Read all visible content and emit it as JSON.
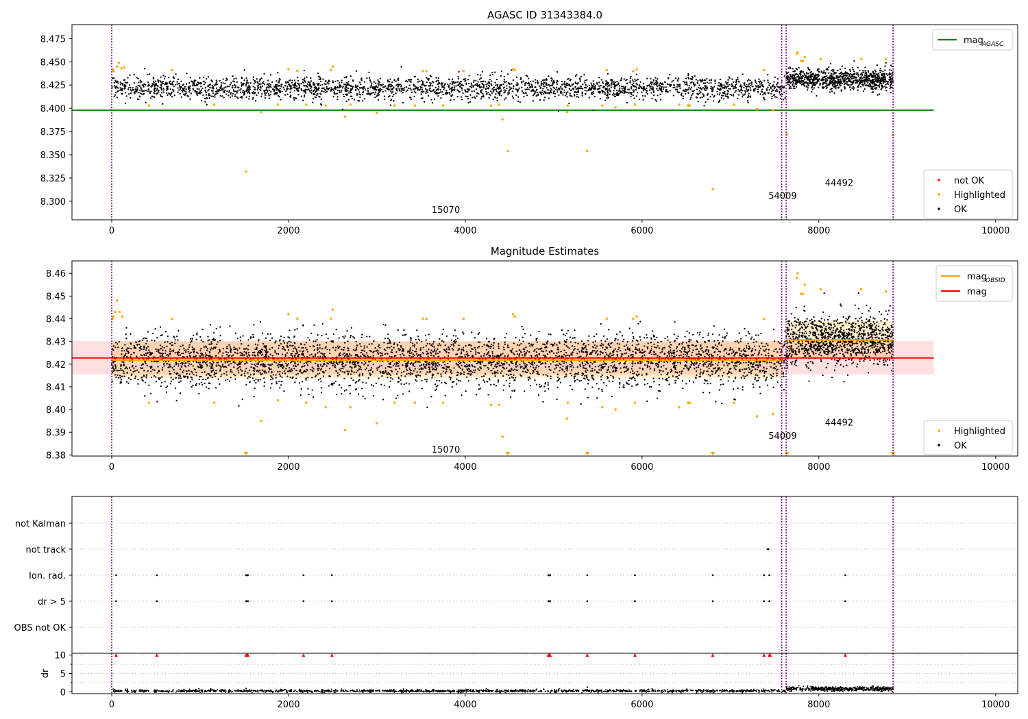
{
  "figure": {
    "title_top": "AGASC ID 31343384.0",
    "title_mid": "Magnitude Estimates"
  },
  "chart_data": [
    {
      "type": "scatter",
      "title": "AGASC ID 31343384.0",
      "xlim": [
        -450,
        10250
      ],
      "ylim": [
        8.28,
        8.49
      ],
      "xticks": [
        0,
        2000,
        4000,
        6000,
        8000,
        10000
      ],
      "yticks": [
        8.3,
        8.325,
        8.35,
        8.375,
        8.4,
        8.425,
        8.45,
        8.475
      ],
      "ytick_labels": [
        "8.300",
        "8.325",
        "8.350",
        "8.375",
        "8.400",
        "8.425",
        "8.450",
        "8.475"
      ],
      "grid": false,
      "legend_upper": {
        "placement": "upper-right",
        "entries": [
          {
            "label": "mag",
            "sub": "AGASC",
            "color": "#008000",
            "kind": "line"
          }
        ]
      },
      "legend_lower": {
        "placement": "lower-right",
        "entries": [
          {
            "label": "not OK",
            "color": "#ff0000",
            "kind": "dot"
          },
          {
            "label": "Highlighted",
            "color": "#ffa500",
            "kind": "dot"
          },
          {
            "label": "OK",
            "color": "#000000",
            "kind": "dot"
          }
        ]
      },
      "mag_agasc": {
        "value": 8.398,
        "x_range": [
          -450,
          9300
        ],
        "color": "#008000"
      },
      "obs_lines": [
        0,
        7580,
        7630,
        8840
      ],
      "obs_labels": [
        {
          "text": "15070",
          "x": 3780,
          "y": 8.291
        },
        {
          "text": "54009",
          "x": 7590,
          "y": 8.306
        },
        {
          "text": "44492",
          "x": 8230,
          "y": 8.32
        }
      ],
      "ok_groups": [
        {
          "x_range": [
            0,
            7620
          ],
          "center": 8.422,
          "spread": 0.006,
          "n": 2600
        },
        {
          "x_range": [
            7630,
            8840
          ],
          "center": 8.431,
          "spread": 0.0055,
          "n": 900
        }
      ],
      "highlighted_points": [
        [
          10,
          8.442
        ],
        [
          20,
          8.44
        ],
        [
          60,
          8.445
        ],
        [
          80,
          8.449
        ],
        [
          110,
          8.443
        ],
        [
          140,
          8.444
        ],
        [
          420,
          8.403
        ],
        [
          680,
          8.441
        ],
        [
          1160,
          8.404
        ],
        [
          1520,
          8.332
        ],
        [
          1690,
          8.396
        ],
        [
          1880,
          8.404
        ],
        [
          2000,
          8.442
        ],
        [
          2100,
          8.44
        ],
        [
          2200,
          8.404
        ],
        [
          2420,
          8.403
        ],
        [
          2480,
          8.441
        ],
        [
          2500,
          8.445
        ],
        [
          2640,
          8.391
        ],
        [
          2700,
          8.404
        ],
        [
          3000,
          8.395
        ],
        [
          3200,
          8.403
        ],
        [
          3430,
          8.403
        ],
        [
          3520,
          8.44
        ],
        [
          3560,
          8.44
        ],
        [
          3750,
          8.403
        ],
        [
          3980,
          8.44
        ],
        [
          4290,
          8.403
        ],
        [
          4380,
          8.404
        ],
        [
          4420,
          8.388
        ],
        [
          4480,
          8.354
        ],
        [
          4540,
          8.442
        ],
        [
          4560,
          8.441
        ],
        [
          5150,
          8.396
        ],
        [
          5160,
          8.403
        ],
        [
          5380,
          8.354
        ],
        [
          5550,
          8.403
        ],
        [
          5600,
          8.441
        ],
        [
          5700,
          8.401
        ],
        [
          5900,
          8.44
        ],
        [
          5940,
          8.442
        ],
        [
          5920,
          8.404
        ],
        [
          6420,
          8.404
        ],
        [
          6520,
          8.403
        ],
        [
          6540,
          8.403
        ],
        [
          6800,
          8.313
        ],
        [
          7040,
          8.404
        ],
        [
          7300,
          8.399
        ],
        [
          7380,
          8.441
        ],
        [
          7480,
          8.398
        ],
        [
          7640,
          8.372
        ],
        [
          7750,
          8.459
        ],
        [
          7760,
          8.46
        ],
        [
          7800,
          8.451
        ],
        [
          7820,
          8.451
        ],
        [
          7840,
          8.455
        ],
        [
          8020,
          8.453
        ],
        [
          8480,
          8.453
        ],
        [
          8760,
          8.453
        ],
        [
          8840,
          8.371
        ]
      ]
    },
    {
      "type": "scatter",
      "title": "Magnitude Estimates",
      "xlim": [
        -450,
        10250
      ],
      "ylim": [
        8.3795,
        8.4655
      ],
      "xticks": [
        0,
        2000,
        4000,
        6000,
        8000,
        10000
      ],
      "yticks": [
        8.38,
        8.39,
        8.4,
        8.41,
        8.42,
        8.43,
        8.44,
        8.45,
        8.46
      ],
      "ytick_labels": [
        "8.38",
        "8.39",
        "8.40",
        "8.41",
        "8.42",
        "8.43",
        "8.44",
        "8.45",
        "8.46"
      ],
      "grid": false,
      "legend_upper": {
        "placement": "upper-right",
        "entries": [
          {
            "label": "mag",
            "sub": "OBSID",
            "color": "#ffa500",
            "kind": "line"
          },
          {
            "label": "mag",
            "sub": "",
            "color": "#ff0000",
            "kind": "line"
          }
        ]
      },
      "legend_lower": {
        "placement": "lower-right",
        "entries": [
          {
            "label": "Highlighted",
            "color": "#ffa500",
            "kind": "dot"
          },
          {
            "label": "OK",
            "color": "#000000",
            "kind": "dot"
          }
        ]
      },
      "mag_line": {
        "value": 8.4227,
        "x_range": [
          -450,
          9300
        ],
        "color": "#ff0000"
      },
      "mag_band": {
        "low": 8.4155,
        "high": 8.4302,
        "x_range": [
          -450,
          9300
        ],
        "color": "#ff0000"
      },
      "obsid_segments": [
        {
          "x_range": [
            0,
            7600
          ],
          "value": 8.4218,
          "band": [
            8.414,
            8.43
          ]
        },
        {
          "x_range": [
            7640,
            8840
          ],
          "value": 8.4306,
          "band": [
            8.422,
            8.439
          ]
        }
      ],
      "obs_lines": [
        0,
        7580,
        7630,
        8840
      ],
      "obs_labels": [
        {
          "text": "15070",
          "x": 3780,
          "y": 8.3825
        },
        {
          "text": "54009",
          "x": 7590,
          "y": 8.3885
        },
        {
          "text": "44492",
          "x": 8230,
          "y": 8.3945
        }
      ],
      "ok_groups": [
        {
          "x_range": [
            0,
            7620
          ],
          "center": 8.4215,
          "spread": 0.0058,
          "n": 3800
        },
        {
          "x_range": [
            7630,
            8840
          ],
          "center": 8.4305,
          "spread": 0.0055,
          "n": 1100
        }
      ],
      "highlighted_points": [
        [
          10,
          8.44
        ],
        [
          20,
          8.441
        ],
        [
          40,
          8.443
        ],
        [
          60,
          8.448
        ],
        [
          90,
          8.443
        ],
        [
          120,
          8.441
        ],
        [
          420,
          8.403
        ],
        [
          680,
          8.44
        ],
        [
          1160,
          8.403
        ],
        [
          1690,
          8.395
        ],
        [
          1880,
          8.404
        ],
        [
          2000,
          8.442
        ],
        [
          2100,
          8.44
        ],
        [
          2200,
          8.403
        ],
        [
          2420,
          8.401
        ],
        [
          2480,
          8.44
        ],
        [
          2500,
          8.444
        ],
        [
          2640,
          8.391
        ],
        [
          2700,
          8.401
        ],
        [
          3000,
          8.394
        ],
        [
          3200,
          8.403
        ],
        [
          3430,
          8.403
        ],
        [
          3520,
          8.44
        ],
        [
          3560,
          8.44
        ],
        [
          3750,
          8.403
        ],
        [
          3980,
          8.44
        ],
        [
          4290,
          8.402
        ],
        [
          4380,
          8.402
        ],
        [
          4420,
          8.388
        ],
        [
          4540,
          8.442
        ],
        [
          4560,
          8.441
        ],
        [
          5150,
          8.396
        ],
        [
          5160,
          8.403
        ],
        [
          5550,
          8.401
        ],
        [
          5600,
          8.44
        ],
        [
          5700,
          8.4
        ],
        [
          5900,
          8.44
        ],
        [
          5940,
          8.441
        ],
        [
          5920,
          8.403
        ],
        [
          6420,
          8.401
        ],
        [
          6520,
          8.403
        ],
        [
          6540,
          8.403
        ],
        [
          7040,
          8.403
        ],
        [
          7300,
          8.397
        ],
        [
          7380,
          8.44
        ],
        [
          7480,
          8.398
        ],
        [
          7750,
          8.458
        ],
        [
          7760,
          8.46
        ],
        [
          7800,
          8.451
        ],
        [
          7820,
          8.451
        ],
        [
          7840,
          8.455
        ],
        [
          8020,
          8.453
        ],
        [
          8480,
          8.453
        ],
        [
          8760,
          8.452
        ]
      ],
      "clipped_points": [
        1520,
        4480,
        5380,
        6800,
        7640,
        8840
      ]
    },
    {
      "type": "scatter",
      "title": "",
      "xlim": [
        -450,
        10250
      ],
      "categories": [
        "not Kalman",
        "not track",
        "Ion. rad.",
        "dr > 5",
        "OBS not OK"
      ],
      "obs_lines": [
        0,
        7580,
        7630,
        8840
      ],
      "flag_points": {
        "not track": [
          7420,
          7430
        ],
        "Ion. rad.": [
          50,
          510,
          1520,
          1530,
          1540,
          2170,
          2490,
          4940,
          4950,
          4960,
          5380,
          5920,
          6800,
          7380,
          7440,
          8300
        ],
        "dr > 5": [
          50,
          510,
          1520,
          1530,
          1540,
          2170,
          2490,
          4940,
          4950,
          4960,
          5380,
          5920,
          6800,
          7380,
          7440,
          8300
        ]
      }
    },
    {
      "type": "scatter",
      "title": "",
      "ylabel": "dr",
      "xlim": [
        -450,
        10250
      ],
      "ylim": [
        -0.5,
        10.5
      ],
      "xticks": [
        0,
        2000,
        4000,
        6000,
        8000,
        10000
      ],
      "yticks": [
        0,
        5,
        10
      ],
      "ytick_labels": [
        "0",
        "5",
        "10"
      ],
      "grid": true,
      "obs_lines": [
        0,
        7580,
        7630,
        8840
      ],
      "dr_groups": [
        {
          "x_range": [
            0,
            7620
          ],
          "center": 0.25,
          "spread": 0.18,
          "n": 1400
        },
        {
          "x_range": [
            7630,
            8840
          ],
          "center": 0.8,
          "spread": 0.3,
          "n": 500
        }
      ],
      "dr_outliers": [
        [
          5380,
          1.3
        ],
        [
          1520,
          0.9
        ]
      ],
      "capped_points": [
        50,
        510,
        1520,
        1530,
        1540,
        2170,
        2490,
        4940,
        4950,
        4960,
        5380,
        5920,
        6800,
        7380,
        7440,
        7450,
        8300
      ]
    }
  ]
}
